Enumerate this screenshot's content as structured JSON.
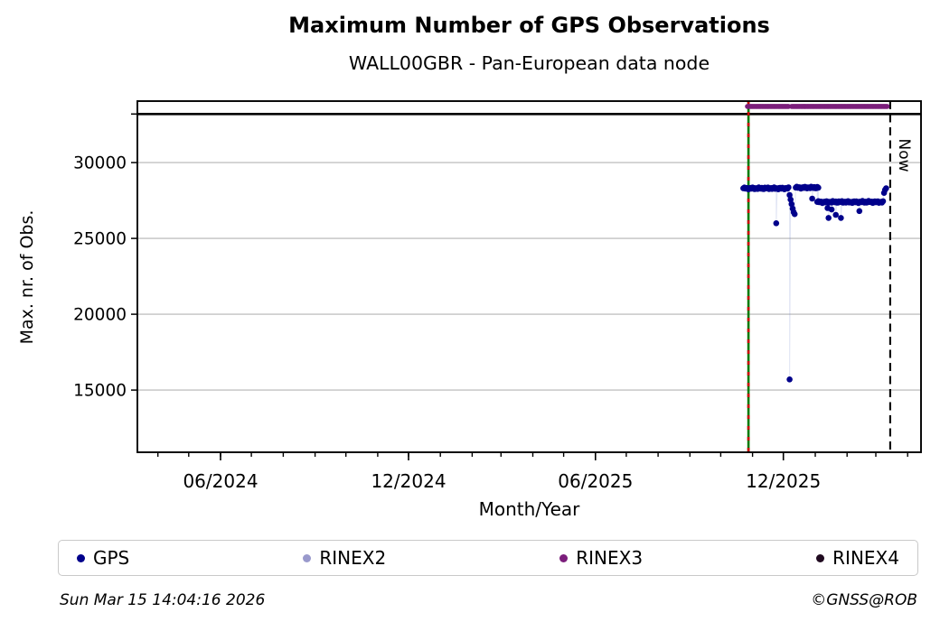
{
  "figure": {
    "title": "Maximum Number of GPS Observations",
    "subtitle": "WALL00GBR - Pan-European data node",
    "footer_left": "Sun Mar 15 14:04:16 2026",
    "footer_right": "©GNSS@ROB"
  },
  "legend": {
    "items": [
      {
        "label": "GPS",
        "color": "#00008B"
      },
      {
        "label": "RINEX2",
        "color": "#9999CC"
      },
      {
        "label": "RINEX3",
        "color": "#7B1E7B"
      },
      {
        "label": "RINEX4",
        "color": "#200A20"
      }
    ]
  },
  "chart_data": {
    "type": "scatter",
    "title": "Maximum Number of GPS Observations",
    "subtitle": "WALL00GBR - Pan-European data node",
    "xlabel": "Month/Year",
    "ylabel": "Max. nr. of Obs.",
    "xlim": [
      "2024-03-12",
      "2026-04-14"
    ],
    "ylim": [
      10900,
      34050
    ],
    "y_ticks": [
      15000,
      20000,
      25000,
      30000
    ],
    "x_ticks_major": [
      {
        "date": "2024-06-01",
        "label": "06/2024"
      },
      {
        "date": "2024-12-01",
        "label": "12/2024"
      },
      {
        "date": "2025-06-01",
        "label": "06/2025"
      },
      {
        "date": "2025-12-01",
        "label": "12/2025"
      }
    ],
    "x_minor_tick_interval_months": 1,
    "grid": "horizontal-only",
    "legend_position": "bottom",
    "reference_lines": {
      "max_line": {
        "value": 33200,
        "color": "#000000",
        "style": "solid"
      },
      "start_line": {
        "date": "2025-10-28",
        "color_solid": "#007A00",
        "color_dash": "#CC0000",
        "style": "green solid overlaid with red dashes"
      },
      "now_line": {
        "date": "2026-03-15",
        "label": "Now",
        "color": "#000000",
        "style": "dashed"
      }
    },
    "series": [
      {
        "name": "GPS",
        "color": "#00008B",
        "marker": "dot",
        "runs": [
          {
            "start": "2025-10-23",
            "end": "2025-12-06",
            "value": 28300
          },
          {
            "start": "2025-12-13",
            "end": "2026-01-04",
            "value": 28350
          },
          {
            "start": "2026-01-03",
            "end": "2026-03-08",
            "value": 27400
          }
        ],
        "points": [
          [
            "2025-11-24",
            26000
          ],
          [
            "2025-12-07",
            27860
          ],
          [
            "2025-12-07",
            15700
          ],
          [
            "2025-12-08",
            27560
          ],
          [
            "2025-12-09",
            27260
          ],
          [
            "2025-12-10",
            26960
          ],
          [
            "2025-12-11",
            26730
          ],
          [
            "2025-12-12",
            26600
          ],
          [
            "2025-12-29",
            27620
          ],
          [
            "2026-01-13",
            27000
          ],
          [
            "2026-01-14",
            26350
          ],
          [
            "2026-01-17",
            26900
          ],
          [
            "2026-01-21",
            26550
          ],
          [
            "2026-01-26",
            26350
          ],
          [
            "2026-02-13",
            26800
          ],
          [
            "2026-03-09",
            28000
          ],
          [
            "2026-03-10",
            28200
          ],
          [
            "2026-03-11",
            28300
          ]
        ]
      },
      {
        "name": "RINEX2",
        "color": "#9999CC",
        "marker": "dot",
        "runs": [],
        "points": []
      },
      {
        "name": "RINEX3",
        "color": "#7B1E7B",
        "marker": "dot",
        "runs": [
          {
            "start": "2025-10-27",
            "end": "2025-12-06",
            "value": 33700
          },
          {
            "start": "2025-12-09",
            "end": "2026-03-12",
            "value": 33700
          }
        ],
        "points": []
      },
      {
        "name": "RINEX4",
        "color": "#200A20",
        "marker": "dot",
        "runs": [],
        "points": []
      }
    ]
  }
}
